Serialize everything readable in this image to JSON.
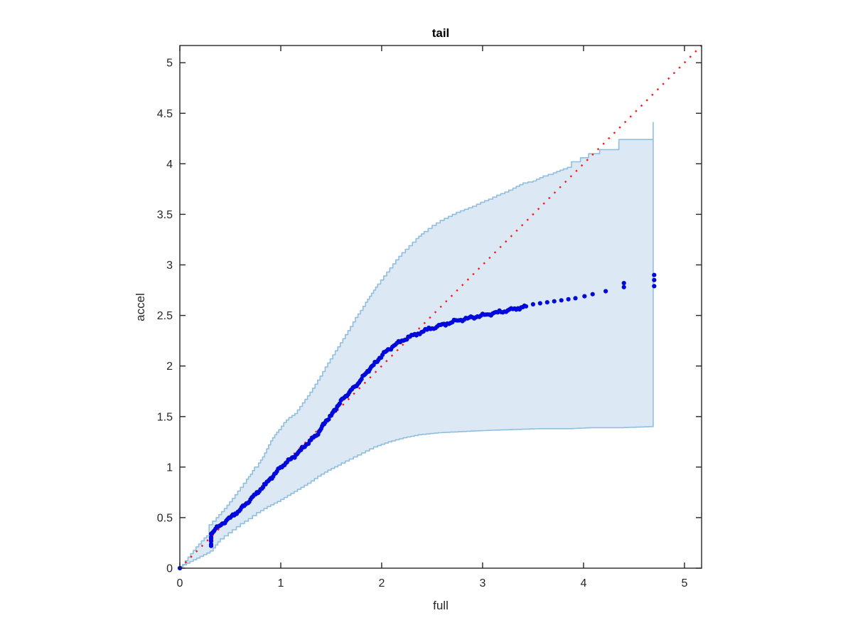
{
  "figure": {
    "title": "tail",
    "xlabel": "full",
    "ylabel": "accel"
  },
  "chart_data": {
    "type": "scatter",
    "title": "tail",
    "xlabel": "full",
    "ylabel": "accel",
    "xlim": [
      0,
      5.17
    ],
    "ylim": [
      0,
      5.17
    ],
    "grid": false,
    "legend": "none",
    "x_tick_labels": [
      "0",
      "1",
      "2",
      "3",
      "4",
      "5"
    ],
    "x_tick_values": [
      0,
      1,
      2,
      3,
      4,
      5
    ],
    "y_tick_labels": [
      "0",
      "0.5",
      "1",
      "1.5",
      "2",
      "2.5",
      "3",
      "3.5",
      "4",
      "4.5",
      "5"
    ],
    "y_tick_values": [
      0,
      0.5,
      1,
      1.5,
      2,
      2.5,
      3,
      3.5,
      4,
      4.5,
      5
    ],
    "colors": {
      "scatter_dots": "#0008dc",
      "band_fill": "#dce9f4",
      "band_edge": "#90bedd",
      "reference_line": "#ff1414",
      "axes": "#262626"
    },
    "series": [
      {
        "name": "qq-scatter",
        "type": "scatter",
        "color": "#0008dc",
        "origin_point": [
          0,
          0
        ],
        "dense_until": 3.45,
        "dense_spacing": 0.02,
        "anchors": [
          [
            0.31,
            0.22
          ],
          [
            0.31,
            0.34
          ],
          [
            0.34,
            0.37
          ],
          [
            0.38,
            0.41
          ],
          [
            0.42,
            0.44
          ],
          [
            0.46,
            0.47
          ],
          [
            0.5,
            0.5
          ],
          [
            0.55,
            0.54
          ],
          [
            0.6,
            0.58
          ],
          [
            0.65,
            0.63
          ],
          [
            0.7,
            0.68
          ],
          [
            0.75,
            0.73
          ],
          [
            0.8,
            0.78
          ],
          [
            0.85,
            0.83
          ],
          [
            0.9,
            0.89
          ],
          [
            0.95,
            0.94
          ],
          [
            1.0,
            1.0
          ],
          [
            1.05,
            1.04
          ],
          [
            1.1,
            1.08
          ],
          [
            1.15,
            1.12
          ],
          [
            1.2,
            1.17
          ],
          [
            1.25,
            1.22
          ],
          [
            1.3,
            1.27
          ],
          [
            1.35,
            1.31
          ],
          [
            1.4,
            1.38
          ],
          [
            1.45,
            1.46
          ],
          [
            1.5,
            1.51
          ],
          [
            1.56,
            1.6
          ],
          [
            1.62,
            1.68
          ],
          [
            1.68,
            1.74
          ],
          [
            1.74,
            1.8
          ],
          [
            1.8,
            1.87
          ],
          [
            1.86,
            1.95
          ],
          [
            1.92,
            2.01
          ],
          [
            1.98,
            2.08
          ],
          [
            2.05,
            2.15
          ],
          [
            2.12,
            2.2
          ],
          [
            2.2,
            2.25
          ],
          [
            2.28,
            2.29
          ],
          [
            2.36,
            2.32
          ],
          [
            2.45,
            2.36
          ],
          [
            2.55,
            2.39
          ],
          [
            2.65,
            2.42
          ],
          [
            2.75,
            2.45
          ],
          [
            2.85,
            2.47
          ],
          [
            2.95,
            2.49
          ],
          [
            3.05,
            2.51
          ],
          [
            3.15,
            2.53
          ],
          [
            3.25,
            2.55
          ],
          [
            3.35,
            2.57
          ],
          [
            3.43,
            2.59
          ],
          [
            3.5,
            2.61
          ],
          [
            3.57,
            2.62
          ],
          [
            3.64,
            2.63
          ],
          [
            3.71,
            2.64
          ],
          [
            3.78,
            2.65
          ],
          [
            3.85,
            2.66
          ],
          [
            3.92,
            2.67
          ],
          [
            4.01,
            2.69
          ],
          [
            4.09,
            2.71
          ],
          [
            4.22,
            2.74
          ],
          [
            4.4,
            2.78
          ],
          [
            4.4,
            2.82
          ],
          [
            4.7,
            2.79
          ],
          [
            4.7,
            2.85
          ],
          [
            4.7,
            2.9
          ]
        ]
      },
      {
        "name": "confidence-band",
        "type": "band",
        "fill": "#dce9f4",
        "edge": "#90bedd",
        "upper": [
          [
            0,
            0
          ],
          [
            0.08,
            0.11
          ],
          [
            0.16,
            0.21
          ],
          [
            0.24,
            0.3
          ],
          [
            0.29,
            0.34
          ],
          [
            0.29,
            0.43
          ],
          [
            0.36,
            0.5
          ],
          [
            0.44,
            0.59
          ],
          [
            0.52,
            0.69
          ],
          [
            0.6,
            0.8
          ],
          [
            0.66,
            0.88
          ],
          [
            0.7,
            0.93
          ],
          [
            0.74,
            1.0
          ],
          [
            0.78,
            1.04
          ],
          [
            0.82,
            1.1
          ],
          [
            0.86,
            1.18
          ],
          [
            0.9,
            1.26
          ],
          [
            0.94,
            1.32
          ],
          [
            0.98,
            1.37
          ],
          [
            1.03,
            1.44
          ],
          [
            1.08,
            1.49
          ],
          [
            1.14,
            1.53
          ],
          [
            1.19,
            1.6
          ],
          [
            1.24,
            1.67
          ],
          [
            1.29,
            1.74
          ],
          [
            1.34,
            1.82
          ],
          [
            1.39,
            1.9
          ],
          [
            1.44,
            1.99
          ],
          [
            1.49,
            2.07
          ],
          [
            1.54,
            2.15
          ],
          [
            1.59,
            2.23
          ],
          [
            1.64,
            2.31
          ],
          [
            1.69,
            2.39
          ],
          [
            1.74,
            2.48
          ],
          [
            1.79,
            2.55
          ],
          [
            1.84,
            2.63
          ],
          [
            1.9,
            2.72
          ],
          [
            1.96,
            2.81
          ],
          [
            2.02,
            2.89
          ],
          [
            2.08,
            2.97
          ],
          [
            2.14,
            3.05
          ],
          [
            2.2,
            3.12
          ],
          [
            2.27,
            3.19
          ],
          [
            2.34,
            3.26
          ],
          [
            2.42,
            3.33
          ],
          [
            2.5,
            3.39
          ],
          [
            2.58,
            3.44
          ],
          [
            2.66,
            3.48
          ],
          [
            2.74,
            3.52
          ],
          [
            2.82,
            3.55
          ],
          [
            2.9,
            3.58
          ],
          [
            2.98,
            3.62
          ],
          [
            3.06,
            3.65
          ],
          [
            3.14,
            3.69
          ],
          [
            3.22,
            3.72
          ],
          [
            3.3,
            3.76
          ],
          [
            3.4,
            3.81
          ],
          [
            3.5,
            3.83
          ],
          [
            3.6,
            3.88
          ],
          [
            3.7,
            3.91
          ],
          [
            3.8,
            3.95
          ],
          [
            3.88,
            3.98
          ],
          [
            3.88,
            4.02
          ],
          [
            3.97,
            4.02
          ],
          [
            3.97,
            4.06
          ],
          [
            4.05,
            4.06
          ],
          [
            4.05,
            4.1
          ],
          [
            4.16,
            4.1
          ],
          [
            4.16,
            4.14
          ],
          [
            4.35,
            4.14
          ],
          [
            4.35,
            4.24
          ],
          [
            4.69,
            4.24
          ],
          [
            4.69,
            4.41
          ]
        ],
        "lower": [
          [
            0,
            0
          ],
          [
            0.1,
            0.05
          ],
          [
            0.2,
            0.1
          ],
          [
            0.3,
            0.15
          ],
          [
            0.33,
            0.17
          ],
          [
            0.4,
            0.26
          ],
          [
            0.48,
            0.32
          ],
          [
            0.56,
            0.38
          ],
          [
            0.64,
            0.44
          ],
          [
            0.72,
            0.49
          ],
          [
            0.8,
            0.55
          ],
          [
            0.9,
            0.61
          ],
          [
            1.0,
            0.66
          ],
          [
            1.1,
            0.72
          ],
          [
            1.2,
            0.78
          ],
          [
            1.3,
            0.84
          ],
          [
            1.4,
            0.91
          ],
          [
            1.5,
            0.97
          ],
          [
            1.6,
            1.02
          ],
          [
            1.72,
            1.08
          ],
          [
            1.84,
            1.14
          ],
          [
            1.96,
            1.2
          ],
          [
            2.1,
            1.25
          ],
          [
            2.25,
            1.29
          ],
          [
            2.4,
            1.32
          ],
          [
            2.6,
            1.34
          ],
          [
            2.8,
            1.35
          ],
          [
            3.0,
            1.36
          ],
          [
            3.3,
            1.37
          ],
          [
            3.6,
            1.38
          ],
          [
            3.9,
            1.38
          ],
          [
            4.1,
            1.39
          ],
          [
            4.4,
            1.39
          ],
          [
            4.69,
            1.4
          ]
        ]
      },
      {
        "name": "reference-line",
        "type": "dotted-line",
        "color": "#ff1414",
        "from": [
          0,
          0
        ],
        "to": [
          5.17,
          5.17
        ]
      }
    ]
  }
}
